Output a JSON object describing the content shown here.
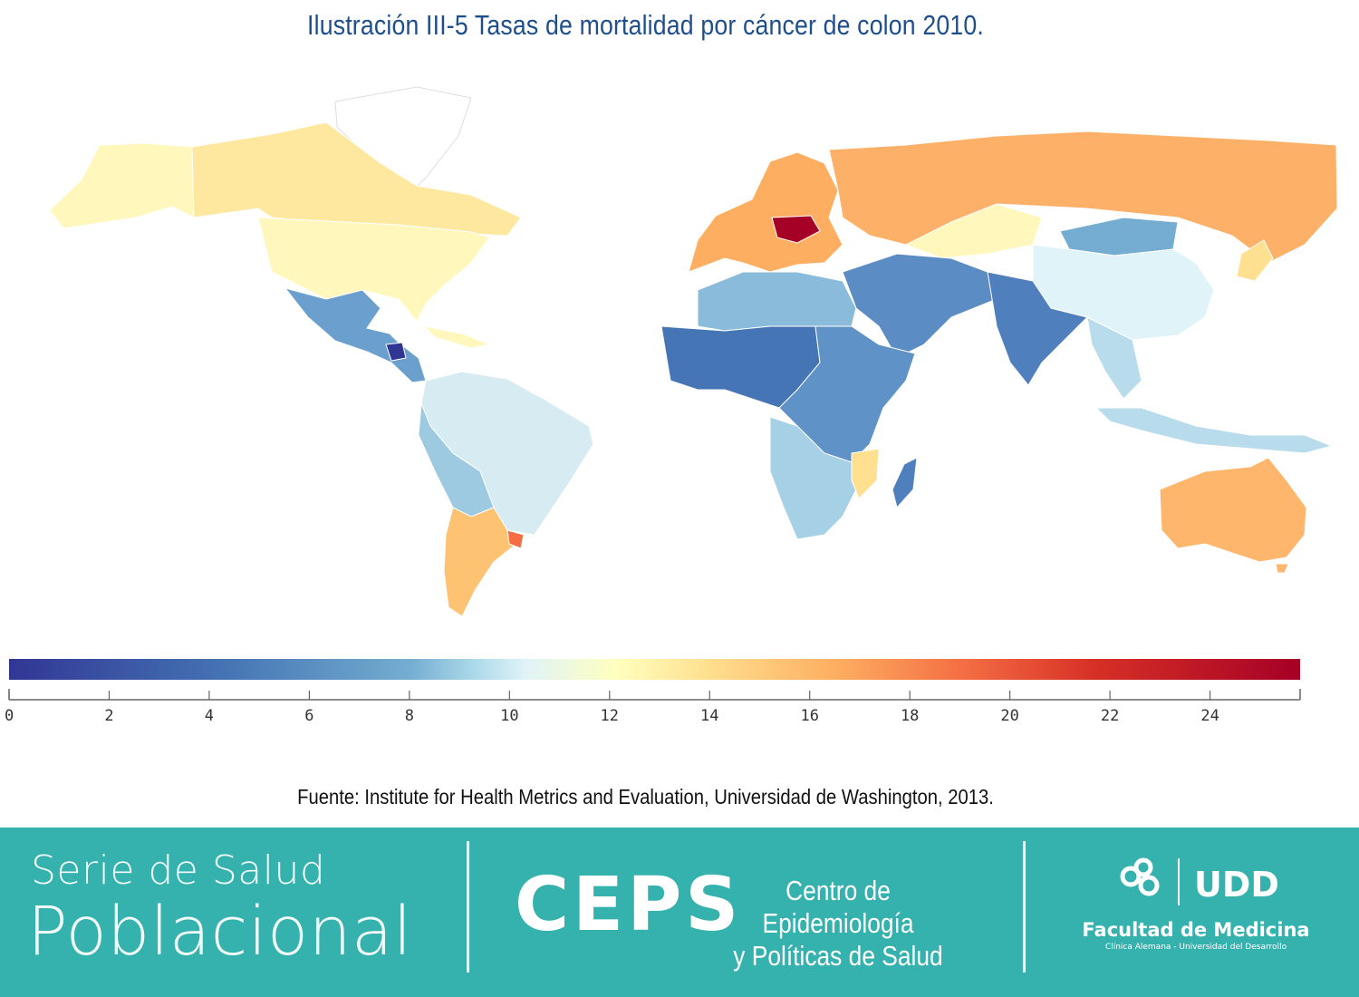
{
  "header": {
    "title": "Ilustración III-5 Tasas de mortalidad por cáncer de colon 2010."
  },
  "legend": {
    "min": 0,
    "max": 25.8,
    "ticks": [
      "0",
      "2",
      "4",
      "6",
      "8",
      "10",
      "12",
      "14",
      "16",
      "18",
      "20",
      "22",
      "24"
    ],
    "colors": [
      "#313695",
      "#4575b4",
      "#74add1",
      "#abd9e9",
      "#e0f3f8",
      "#ffffbf",
      "#fee090",
      "#fdae61",
      "#f46d43",
      "#d73027",
      "#a50026"
    ]
  },
  "map": {
    "regions": [
      {
        "id": "north-america",
        "value": 12.5,
        "color": "#fff7bc"
      },
      {
        "id": "canada",
        "value": 13.5,
        "color": "#fee8a0"
      },
      {
        "id": "greenland",
        "value": 12,
        "color": "#ffffff"
      },
      {
        "id": "mexico-central-america",
        "value": 6.5,
        "color": "#6a9fce"
      },
      {
        "id": "guatemala",
        "value": 2,
        "color": "#313695"
      },
      {
        "id": "south-america-north",
        "value": 9.5,
        "color": "#d7ebf3"
      },
      {
        "id": "peru-bolivia",
        "value": 8,
        "color": "#9ecae1"
      },
      {
        "id": "argentina-chile",
        "value": 15.5,
        "color": "#fdc272"
      },
      {
        "id": "uruguay",
        "value": 19,
        "color": "#f46d43"
      },
      {
        "id": "western-europe",
        "value": 16.5,
        "color": "#fdae61"
      },
      {
        "id": "hungary-central-europe",
        "value": 25,
        "color": "#a50026"
      },
      {
        "id": "russia",
        "value": 16,
        "color": "#fdb068"
      },
      {
        "id": "kazakhstan",
        "value": 12,
        "color": "#fff7bc"
      },
      {
        "id": "china",
        "value": 9.5,
        "color": "#e0f3f8"
      },
      {
        "id": "mongolia",
        "value": 6.5,
        "color": "#74add1"
      },
      {
        "id": "japan",
        "value": 14,
        "color": "#fee090"
      },
      {
        "id": "middle-east",
        "value": 5,
        "color": "#5b8cc4"
      },
      {
        "id": "india",
        "value": 5,
        "color": "#4f80bd"
      },
      {
        "id": "southeast-asia",
        "value": 8.5,
        "color": "#b9dcec"
      },
      {
        "id": "north-africa",
        "value": 7,
        "color": "#8bbbdb"
      },
      {
        "id": "west-central-africa",
        "value": 4,
        "color": "#4575b4"
      },
      {
        "id": "east-africa",
        "value": 5.5,
        "color": "#5f92c7"
      },
      {
        "id": "southern-africa",
        "value": 8,
        "color": "#a6d0e6"
      },
      {
        "id": "mozambique",
        "value": 13.5,
        "color": "#fee090"
      },
      {
        "id": "madagascar",
        "value": 5,
        "color": "#4f80bd"
      },
      {
        "id": "australia",
        "value": 16,
        "color": "#fdb66b"
      },
      {
        "id": "new-zealand",
        "value": 16,
        "color": "#fdb66b"
      }
    ]
  },
  "source": {
    "text": "Fuente: Institute for Health Metrics and Evaluation, Universidad de Washington, 2013."
  },
  "footer": {
    "series_line1": "Serie de Salud",
    "series_line2": "Poblacional",
    "ceps_acronym": "CEPS",
    "ceps_line1": "Centro de Epidemiología",
    "ceps_line2": "y Políticas de Salud",
    "faculty": "Facultad de Medicina",
    "faculty_sub": "Clínica Alemana - Universidad del Desarrollo",
    "logo_text": "UDD"
  }
}
